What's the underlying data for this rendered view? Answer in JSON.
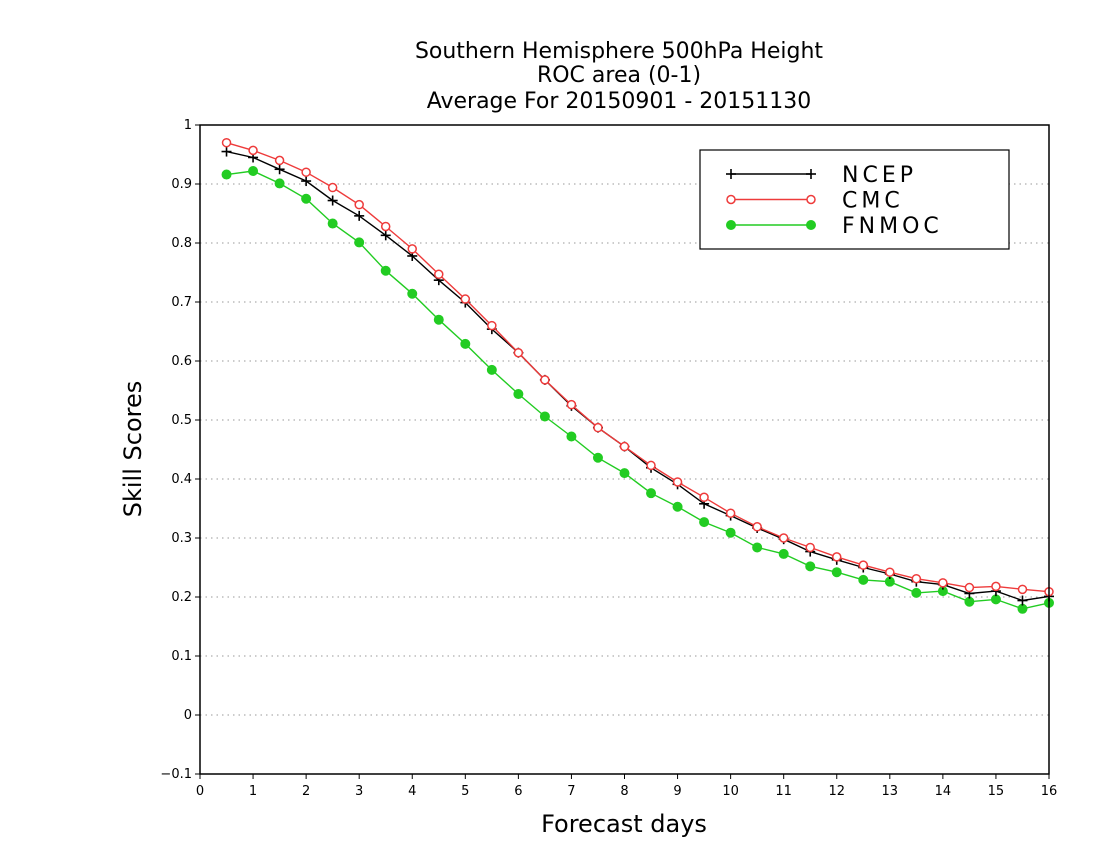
{
  "chart_data": {
    "type": "line",
    "title_lines": [
      "Southern Hemisphere 500hPa Height",
      "ROC area (0-1)",
      "Average For 20150901 - 20151130"
    ],
    "xlabel": "Forecast days",
    "ylabel": "Skill Scores",
    "xlim": [
      0,
      16
    ],
    "ylim": [
      -0.1,
      1
    ],
    "x_ticks": [
      "0",
      "1",
      "2",
      "3",
      "4",
      "5",
      "6",
      "7",
      "8",
      "9",
      "10",
      "11",
      "12",
      "13",
      "14",
      "15",
      "16"
    ],
    "y_ticks": [
      "−0.1",
      "0",
      "0.1",
      "0.2",
      "0.3",
      "0.4",
      "0.5",
      "0.6",
      "0.7",
      "0.8",
      "0.9",
      "1"
    ],
    "grid": "horizontal dotted",
    "legend_position": "top-right",
    "x": [
      0.5,
      1,
      1.5,
      2,
      2.5,
      3,
      3.5,
      4,
      4.5,
      5,
      5.5,
      6,
      6.5,
      7,
      7.5,
      8,
      8.5,
      9,
      9.5,
      10,
      10.5,
      11,
      11.5,
      12,
      12.5,
      13,
      13.5,
      14,
      14.5,
      15,
      15.5,
      16
    ],
    "series": [
      {
        "name": "NCEP",
        "color": "#000000",
        "marker": "plus",
        "values": [
          0.955,
          0.945,
          0.925,
          0.905,
          0.872,
          0.846,
          0.813,
          0.778,
          0.737,
          0.699,
          0.654,
          0.614,
          0.568,
          0.524,
          0.487,
          0.455,
          0.419,
          0.391,
          0.358,
          0.338,
          0.317,
          0.298,
          0.277,
          0.263,
          0.25,
          0.239,
          0.226,
          0.221,
          0.206,
          0.21,
          0.194,
          0.201
        ]
      },
      {
        "name": "CMC",
        "color": "#ee3b3b",
        "marker": "open-circle",
        "values": [
          0.97,
          0.957,
          0.94,
          0.92,
          0.894,
          0.865,
          0.828,
          0.79,
          0.747,
          0.705,
          0.66,
          0.614,
          0.568,
          0.526,
          0.487,
          0.455,
          0.423,
          0.395,
          0.369,
          0.342,
          0.319,
          0.3,
          0.284,
          0.268,
          0.254,
          0.242,
          0.231,
          0.224,
          0.216,
          0.218,
          0.213,
          0.209
        ]
      },
      {
        "name": "FNMOC",
        "color": "#22cc22",
        "marker": "filled-circle",
        "values": [
          0.916,
          0.922,
          0.901,
          0.875,
          0.833,
          0.801,
          0.753,
          0.714,
          0.67,
          0.629,
          0.585,
          0.544,
          0.506,
          0.472,
          0.436,
          0.41,
          0.376,
          0.353,
          0.327,
          0.309,
          0.284,
          0.273,
          0.252,
          0.242,
          0.229,
          0.226,
          0.207,
          0.21,
          0.192,
          0.196,
          0.18,
          0.19
        ]
      }
    ]
  }
}
